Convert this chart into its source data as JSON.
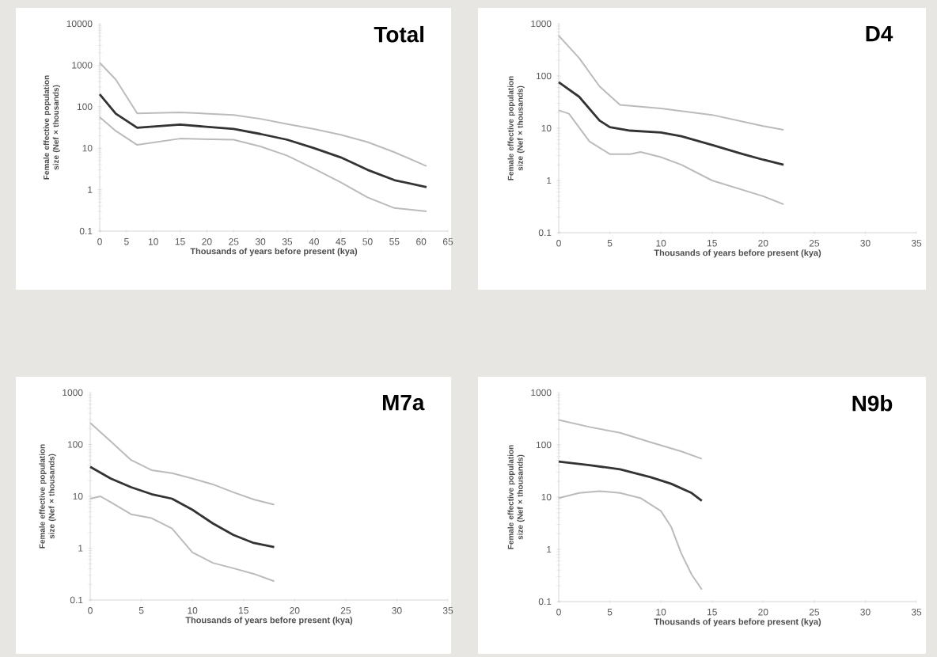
{
  "chart_data": [
    {
      "type": "line",
      "title": "Total",
      "xlabel": "Thousands of years before present (kya)",
      "ylabel": "Female effective population size (Nef × thousands)",
      "log": "y",
      "xlim": [
        0,
        65
      ],
      "ylim": [
        0.1,
        10000
      ],
      "xticks": [
        0,
        5,
        10,
        15,
        20,
        25,
        30,
        35,
        40,
        45,
        50,
        55,
        60,
        65
      ],
      "yticks": [
        0.1,
        1,
        10,
        100,
        1000,
        10000
      ],
      "line_style": "solid",
      "series": [
        {
          "color": "#bbbbbb",
          "x": [
            0,
            3,
            7,
            15,
            25,
            30,
            35,
            40,
            45,
            50,
            55,
            61
          ],
          "values": [
            1150,
            450,
            69,
            73,
            63,
            51,
            38,
            29,
            21,
            14,
            8,
            3.7
          ]
        },
        {
          "color": "#bbbbbb",
          "x": [
            0,
            3,
            7,
            15,
            25,
            30,
            35,
            40,
            45,
            50,
            55,
            61
          ],
          "values": [
            56,
            26,
            12,
            17,
            16,
            11,
            6.6,
            3.2,
            1.5,
            0.65,
            0.36,
            0.3
          ]
        },
        {
          "color": "#333333",
          "x": [
            0,
            3,
            7,
            15,
            25,
            30,
            35,
            40,
            45,
            50,
            55,
            61
          ],
          "values": [
            200,
            68,
            31,
            37,
            29,
            22,
            16,
            10,
            6,
            3,
            1.7,
            1.15
          ]
        }
      ]
    },
    {
      "type": "line",
      "title": "D4",
      "xlabel": "Thousands of years before present (kya)",
      "ylabel": "Female effective population size (Nef × thousands)",
      "log": "y",
      "xlim": [
        0,
        35
      ],
      "ylim": [
        0.1,
        1000
      ],
      "xticks": [
        0,
        5,
        10,
        15,
        20,
        25,
        30,
        35
      ],
      "yticks": [
        0.1,
        1,
        10,
        100,
        1000
      ],
      "line_style": "solid",
      "series": [
        {
          "color": "#bbbbbb",
          "x": [
            0,
            2,
            4,
            6,
            10,
            15,
            20,
            22
          ],
          "values": [
            590,
            220,
            63,
            28,
            24,
            18,
            11,
            9.3
          ]
        },
        {
          "color": "#bbbbbb",
          "x": [
            0,
            1,
            3,
            5,
            7,
            8,
            10,
            12,
            15,
            20,
            22
          ],
          "values": [
            22,
            19,
            5.6,
            3.2,
            3.2,
            3.5,
            2.8,
            2,
            1,
            0.5,
            0.35
          ]
        },
        {
          "color": "#333333",
          "x": [
            0,
            2,
            4,
            5,
            7,
            10,
            12,
            15,
            18,
            20,
            22
          ],
          "values": [
            76,
            40,
            14,
            10.5,
            9,
            8.3,
            7,
            4.8,
            3.2,
            2.5,
            2
          ]
        }
      ]
    },
    {
      "type": "line",
      "title": "M7a",
      "xlabel": "Thousands of years before present (kya)",
      "ylabel": "Female effective population size (Nef × thousands)",
      "log": "y",
      "xlim": [
        0,
        35
      ],
      "ylim": [
        0.1,
        1000
      ],
      "xticks": [
        0,
        5,
        10,
        15,
        20,
        25,
        30,
        35
      ],
      "yticks": [
        0.1,
        1,
        10,
        100,
        1000
      ],
      "line_style": "solid",
      "series": [
        {
          "color": "#bbbbbb",
          "x": [
            0,
            2,
            4,
            6,
            8,
            10,
            12,
            14,
            16,
            18
          ],
          "values": [
            260,
            115,
            50,
            32,
            28,
            22,
            17,
            12,
            8.7,
            6.9
          ]
        },
        {
          "color": "#bbbbbb",
          "x": [
            0,
            1,
            2,
            4,
            6,
            8,
            10,
            12,
            14,
            16,
            18
          ],
          "values": [
            9,
            10,
            7.7,
            4.5,
            3.8,
            2.4,
            0.83,
            0.52,
            0.41,
            0.32,
            0.23
          ]
        },
        {
          "color": "#333333",
          "x": [
            0,
            2,
            4,
            6,
            8,
            10,
            12,
            14,
            16,
            18
          ],
          "values": [
            37,
            22,
            15,
            11,
            9,
            5.5,
            3,
            1.8,
            1.26,
            1.05
          ]
        }
      ]
    },
    {
      "type": "line",
      "title": "N9b",
      "xlabel": "Thousands of years before present (kya)",
      "ylabel": "Female effective population size (Nef × thousands)",
      "log": "y",
      "xlim": [
        0,
        35
      ],
      "ylim": [
        0.1,
        1000
      ],
      "xticks": [
        0,
        5,
        10,
        15,
        20,
        25,
        30,
        35
      ],
      "yticks": [
        0.1,
        1,
        10,
        100,
        1000
      ],
      "line_style": "solid",
      "series": [
        {
          "color": "#bbbbbb",
          "x": [
            0,
            3,
            6,
            9,
            12,
            14
          ],
          "values": [
            300,
            220,
            170,
            112,
            75,
            54
          ]
        },
        {
          "color": "#bbbbbb",
          "x": [
            0,
            2,
            4,
            6,
            8,
            10,
            11,
            12,
            13,
            14
          ],
          "values": [
            9.6,
            12,
            13,
            12,
            9.6,
            5.4,
            2.7,
            0.83,
            0.33,
            0.17
          ]
        },
        {
          "color": "#333333",
          "x": [
            0,
            3,
            6,
            9,
            11,
            13,
            14
          ],
          "values": [
            48,
            41,
            34,
            24,
            18,
            12,
            8.5
          ]
        }
      ]
    }
  ]
}
